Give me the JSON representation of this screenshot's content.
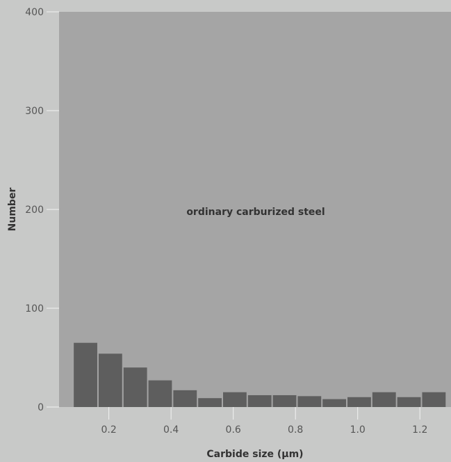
{
  "chart_data": {
    "type": "bar",
    "title": "",
    "annotation": "ordinary carburized steel",
    "xlabel": "Carbide size (μm)",
    "ylabel": "Number",
    "xlim": [
      0.04,
      1.3
    ],
    "ylim": [
      0,
      400
    ],
    "x_ticks": [
      "0.2",
      "0.4",
      "0.6",
      "0.8",
      "1.0",
      "1.2"
    ],
    "x_tick_values": [
      0.2,
      0.4,
      0.6,
      0.8,
      1.0,
      1.2
    ],
    "y_ticks": [
      "0",
      "100",
      "200",
      "300",
      "400"
    ],
    "y_tick_values": [
      0,
      100,
      200,
      300,
      400
    ],
    "bin_width": 0.08,
    "x": [
      0.125,
      0.205,
      0.285,
      0.365,
      0.445,
      0.525,
      0.605,
      0.685,
      0.765,
      0.845,
      0.925,
      1.005,
      1.085,
      1.165,
      1.245
    ],
    "values": [
      65,
      54,
      40,
      27,
      17,
      9,
      15,
      12,
      12,
      11,
      8,
      10,
      15,
      10,
      15
    ],
    "grid": false,
    "legend": "none",
    "colors": {
      "background": "#c8c9c8",
      "plot_area": "#a5a5a5",
      "bar": "#5e5e5e",
      "text": "#333333",
      "axis_text": "#555555"
    }
  }
}
